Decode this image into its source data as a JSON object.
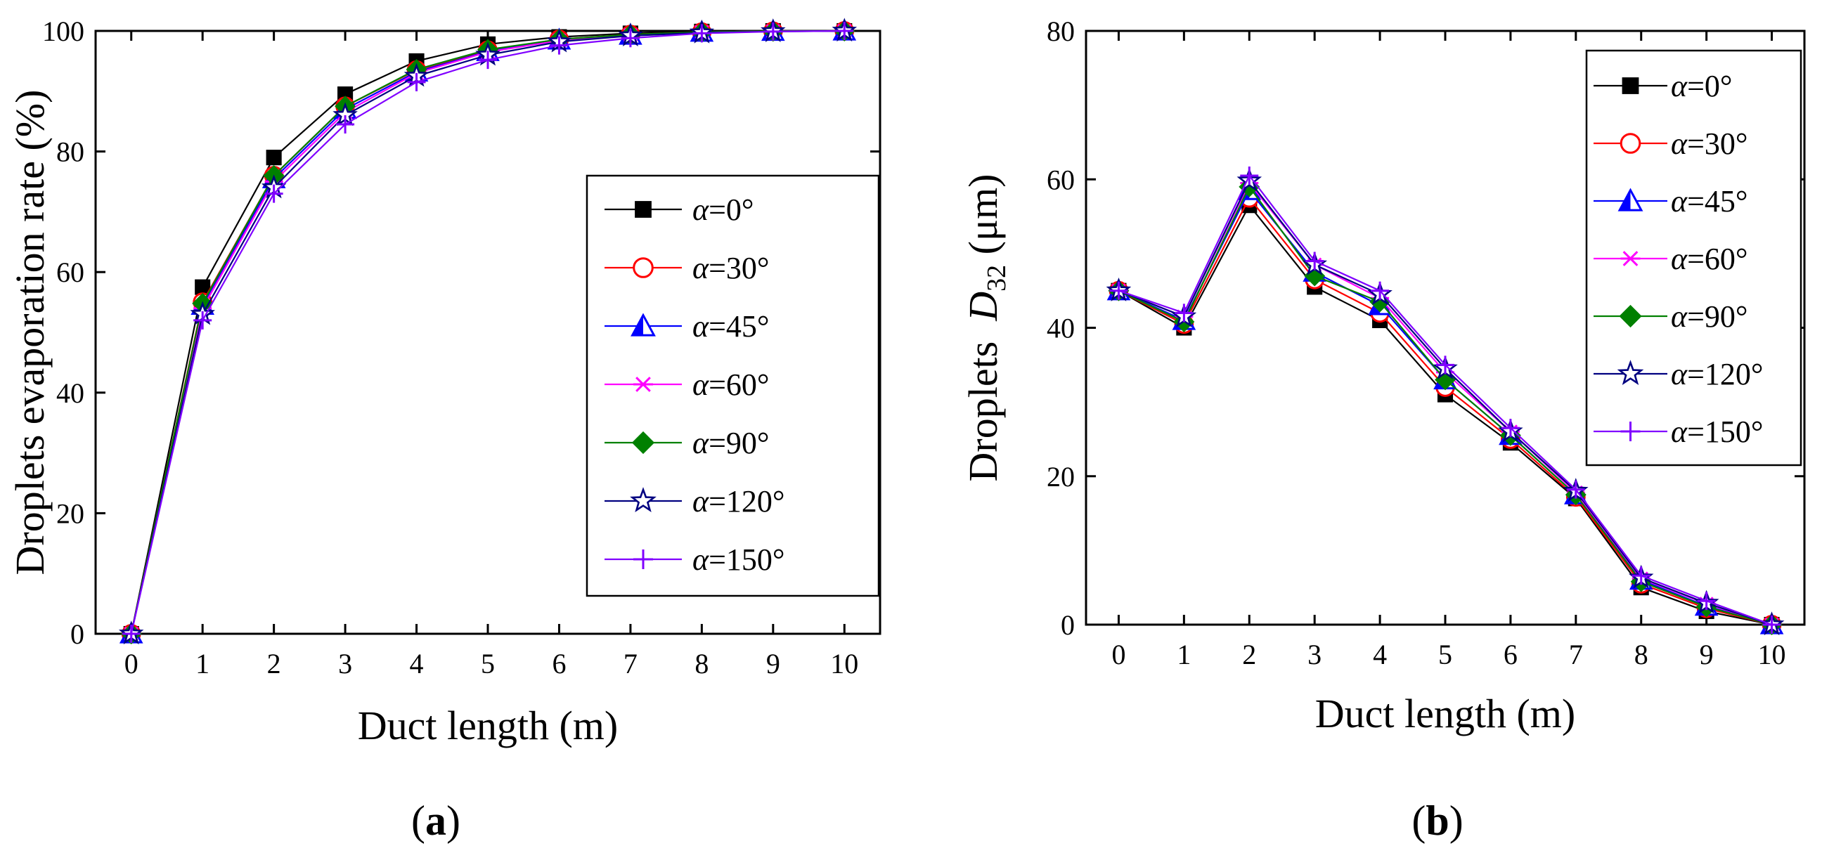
{
  "chart_data": [
    {
      "type": "line",
      "panel_label": "(a)",
      "panel_letter": "a",
      "title": "",
      "xlabel": "Duct length (m)",
      "ylabel": "Droplets evaporation rate (%)",
      "xlim": [
        -0.5,
        10.5
      ],
      "ylim": [
        0,
        100
      ],
      "xticks": [
        0,
        1,
        2,
        3,
        4,
        5,
        6,
        7,
        8,
        9,
        10
      ],
      "yticks": [
        0,
        20,
        40,
        60,
        80,
        100
      ],
      "grid": false,
      "legend_position": "right-center",
      "x": [
        0,
        1,
        2,
        3,
        4,
        5,
        6,
        7,
        8,
        9,
        10
      ],
      "series": [
        {
          "name": "α=0°",
          "alpha_symbol": "α",
          "value_text": "=0°",
          "color": "#000000",
          "marker": "square-filled",
          "values": [
            0,
            57.5,
            79,
            89.5,
            95,
            97.8,
            99,
            99.6,
            99.9,
            100,
            100
          ]
        },
        {
          "name": "α=30°",
          "alpha_symbol": "α",
          "value_text": "=30°",
          "color": "#ff0000",
          "marker": "circle-open",
          "values": [
            0,
            55,
            76,
            87.5,
            93.5,
            96.8,
            98.6,
            99.4,
            99.8,
            99.95,
            100
          ]
        },
        {
          "name": "α=45°",
          "alpha_symbol": "α",
          "value_text": "=45°",
          "color": "#0000ff",
          "marker": "triangle-half",
          "values": [
            0,
            54.5,
            75.5,
            87,
            93.2,
            96.6,
            98.5,
            99.3,
            99.8,
            99.95,
            100
          ]
        },
        {
          "name": "α=60°",
          "alpha_symbol": "α",
          "value_text": "=60°",
          "color": "#ff00ff",
          "marker": "asterisk",
          "values": [
            0,
            54,
            75,
            86.5,
            93,
            96.5,
            98.4,
            99.3,
            99.8,
            99.95,
            100
          ]
        },
        {
          "name": "α=90°",
          "alpha_symbol": "α",
          "value_text": "=90°",
          "color": "#008000",
          "marker": "diamond-filled",
          "values": [
            0,
            54.8,
            76,
            87.5,
            93.6,
            96.9,
            98.6,
            99.4,
            99.8,
            99.95,
            100
          ]
        },
        {
          "name": "α=120°",
          "alpha_symbol": "α",
          "value_text": "=120°",
          "color": "#000080",
          "marker": "star-open",
          "values": [
            0,
            53,
            74,
            86,
            92.5,
            96,
            98.2,
            99.2,
            99.7,
            99.9,
            100
          ]
        },
        {
          "name": "α=150°",
          "alpha_symbol": "α",
          "value_text": "=150°",
          "color": "#8000ff",
          "marker": "plus",
          "values": [
            0,
            52,
            73,
            84.5,
            91.5,
            95.2,
            97.6,
            98.8,
            99.6,
            99.9,
            100
          ]
        }
      ]
    },
    {
      "type": "line",
      "panel_label": "(b)",
      "panel_letter": "b",
      "title": "",
      "xlabel": "Duct length (m)",
      "ylabel": "Droplets D32 (μm)",
      "ylabel_prefix": "Droplets",
      "ylabel_var": "D",
      "ylabel_sub": "32",
      "ylabel_unit": "(μm)",
      "xlim": [
        -0.5,
        10.5
      ],
      "ylim": [
        0,
        80
      ],
      "xticks": [
        0,
        1,
        2,
        3,
        4,
        5,
        6,
        7,
        8,
        9,
        10
      ],
      "yticks": [
        0,
        20,
        40,
        60,
        80
      ],
      "grid": false,
      "legend_position": "top-right",
      "x": [
        0,
        1,
        2,
        3,
        4,
        5,
        6,
        7,
        8,
        9,
        10
      ],
      "series": [
        {
          "name": "α=0°",
          "alpha_symbol": "α",
          "value_text": "=0°",
          "color": "#000000",
          "marker": "square-filled",
          "values": [
            45,
            40,
            56.5,
            45.5,
            41,
            31,
            24.5,
            17,
            5,
            1.8,
            0
          ]
        },
        {
          "name": "α=30°",
          "alpha_symbol": "α",
          "value_text": "=30°",
          "color": "#ff0000",
          "marker": "circle-open",
          "values": [
            45,
            40.5,
            57.5,
            46.5,
            42,
            32,
            25,
            17.2,
            5.5,
            2.2,
            0
          ]
        },
        {
          "name": "α=45°",
          "alpha_symbol": "α",
          "value_text": "=45°",
          "color": "#0000ff",
          "marker": "triangle-half",
          "values": [
            45,
            41,
            58.5,
            47.5,
            43,
            33,
            25.5,
            17.5,
            6,
            2.5,
            0
          ]
        },
        {
          "name": "α=60°",
          "alpha_symbol": "α",
          "value_text": "=60°",
          "color": "#ff00ff",
          "marker": "asterisk",
          "values": [
            45,
            41.5,
            59.5,
            48.5,
            44,
            34,
            26,
            17.8,
            6.2,
            2.8,
            0
          ]
        },
        {
          "name": "α=90°",
          "alpha_symbol": "α",
          "value_text": "=90°",
          "color": "#008000",
          "marker": "diamond-filled",
          "values": [
            45,
            40.8,
            59,
            47,
            43.5,
            33,
            25.5,
            17.5,
            5.8,
            2.4,
            0
          ]
        },
        {
          "name": "α=120°",
          "alpha_symbol": "α",
          "value_text": "=120°",
          "color": "#000080",
          "marker": "star-open",
          "values": [
            45,
            41.5,
            59.8,
            48.5,
            44.5,
            34.5,
            26,
            18,
            6.3,
            2.9,
            0
          ]
        },
        {
          "name": "α=150°",
          "alpha_symbol": "α",
          "value_text": "=150°",
          "color": "#8000ff",
          "marker": "plus",
          "values": [
            45,
            42,
            60.5,
            49,
            45,
            35,
            26.5,
            18.2,
            6.6,
            3.2,
            0
          ]
        }
      ]
    }
  ]
}
